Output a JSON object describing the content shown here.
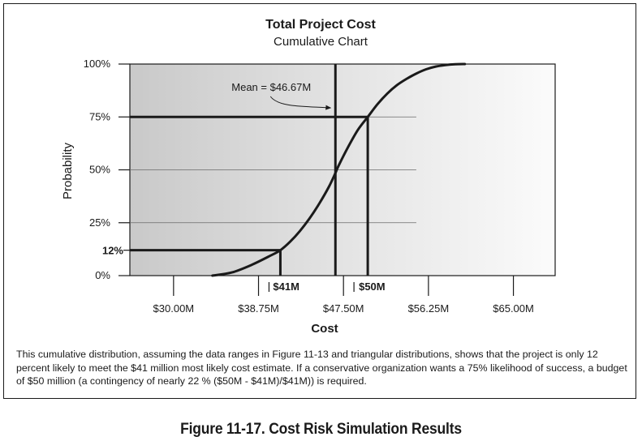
{
  "chart_data": {
    "type": "line",
    "title": "Total Project Cost",
    "subtitle": "Cumulative Chart",
    "xlabel": "Cost",
    "ylabel": "Probability",
    "x_tick_labels": [
      "$30.00M",
      "$38.75M",
      "$47.50M",
      "$56.25M",
      "$65.00M"
    ],
    "x_ticks": [
      30.0,
      38.75,
      47.5,
      56.25,
      65.0
    ],
    "y_tick_labels": [
      "100%",
      "75%",
      "50%",
      "25%",
      "0%"
    ],
    "y_ticks": [
      100,
      75,
      50,
      25,
      0
    ],
    "xlim": [
      25.5,
      69.3
    ],
    "ylim": [
      0,
      100
    ],
    "grid": "horizontal",
    "series": [
      {
        "x": [
          34.0,
          36.0,
          38.0,
          40.0,
          41.0,
          42.0,
          43.0,
          44.0,
          45.0,
          46.0,
          46.67,
          47.0,
          48.0,
          49.0,
          50.0,
          51.0,
          52.0,
          53.0,
          54.0,
          55.0,
          56.0,
          57.0,
          58.0,
          59.0,
          60.0
        ],
        "y": [
          0.0,
          1.5,
          5.0,
          9.5,
          12.0,
          16.0,
          21.0,
          27.0,
          34.0,
          42.0,
          48.5,
          52.0,
          61.0,
          69.0,
          75.0,
          81.0,
          86.0,
          90.0,
          93.0,
          95.5,
          97.5,
          98.8,
          99.5,
          99.9,
          100.0
        ]
      }
    ],
    "annotations": {
      "mean_label": "Mean = $46.67M",
      "mean_x": 46.67,
      "p12_label": "12%",
      "p12_y": 12,
      "p12_x": 41.0,
      "p12_x_label": "$41M",
      "p75_y": 75,
      "p75_x": 50.0,
      "p75_x_label": "$50M"
    }
  },
  "caption": "This cumulative distribution, assuming the data ranges in Figure 11-13 and triangular distributions, shows that the project is only 12 percent likely to meet the $41 million most likely cost estimate. If a conservative organization wants a 75% likelihood of success, a budget of $50 million (a contingency of nearly 22 % ($50M - $41M)/$41M)) is required.",
  "figure_title": "Figure 11-17. Cost Risk Simulation Results"
}
